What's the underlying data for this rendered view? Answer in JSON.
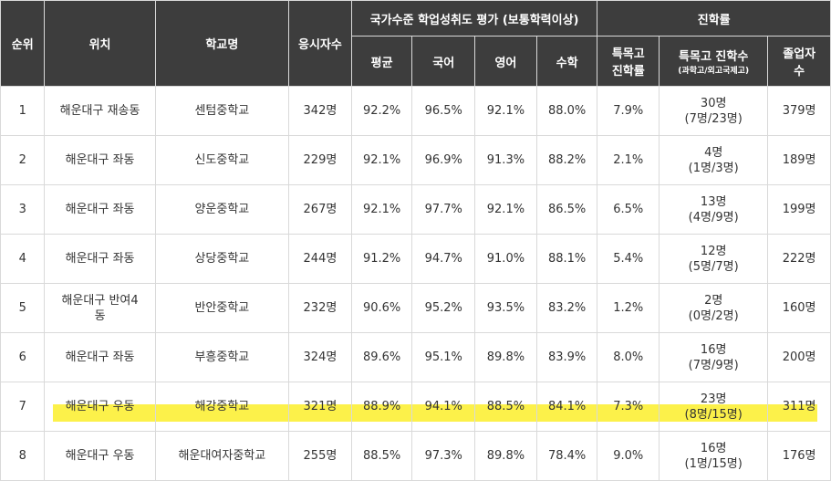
{
  "header": {
    "rank": "순위",
    "location": "위치",
    "school": "학교명",
    "examinees": "응시자수",
    "assessment_group": "국가수준 학업성취도 평가 (보통학력이상)",
    "advancement_group": "진학률",
    "average": "평균",
    "korean": "국어",
    "english": "영어",
    "math": "수학",
    "special_rate_l1": "특목고",
    "special_rate_l2": "진학률",
    "special_count_l1": "특목고 진학수",
    "special_count_l2": "(과학고/외고국제고)",
    "graduates_l1": "졸업자",
    "graduates_l2": "수"
  },
  "rows": [
    {
      "rank": "1",
      "location": "해운대구 재송동",
      "location_l2": "",
      "school": "센텀중학교",
      "examinees": "342명",
      "avg": "92.2%",
      "kor": "96.5%",
      "eng": "92.1%",
      "math": "88.0%",
      "special_rate": "7.9%",
      "special_count": "30명",
      "special_detail": "(7명/23명)",
      "graduates": "379명"
    },
    {
      "rank": "2",
      "location": "해운대구 좌동",
      "location_l2": "",
      "school": "신도중학교",
      "examinees": "229명",
      "avg": "92.1%",
      "kor": "96.9%",
      "eng": "91.3%",
      "math": "88.2%",
      "special_rate": "2.1%",
      "special_count": "4명",
      "special_detail": "(1명/3명)",
      "graduates": "189명"
    },
    {
      "rank": "3",
      "location": "해운대구 좌동",
      "location_l2": "",
      "school": "양운중학교",
      "examinees": "267명",
      "avg": "92.1%",
      "kor": "97.7%",
      "eng": "92.1%",
      "math": "86.5%",
      "special_rate": "6.5%",
      "special_count": "13명",
      "special_detail": "(4명/9명)",
      "graduates": "199명"
    },
    {
      "rank": "4",
      "location": "해운대구 좌동",
      "location_l2": "",
      "school": "상당중학교",
      "examinees": "244명",
      "avg": "91.2%",
      "kor": "94.7%",
      "eng": "91.0%",
      "math": "88.1%",
      "special_rate": "5.4%",
      "special_count": "12명",
      "special_detail": "(5명/7명)",
      "graduates": "222명"
    },
    {
      "rank": "5",
      "location": "해운대구 반여4",
      "location_l2": "동",
      "school": "반안중학교",
      "examinees": "232명",
      "avg": "90.6%",
      "kor": "95.2%",
      "eng": "93.5%",
      "math": "83.2%",
      "special_rate": "1.2%",
      "special_count": "2명",
      "special_detail": "(0명/2명)",
      "graduates": "160명"
    },
    {
      "rank": "6",
      "location": "해운대구 좌동",
      "location_l2": "",
      "school": "부흥중학교",
      "examinees": "324명",
      "avg": "89.6%",
      "kor": "95.1%",
      "eng": "89.8%",
      "math": "83.9%",
      "special_rate": "8.0%",
      "special_count": "16명",
      "special_detail": "(7명/9명)",
      "graduates": "200명"
    },
    {
      "rank": "7",
      "location": "해운대구 우동",
      "location_l2": "",
      "school": "해강중학교",
      "examinees": "321명",
      "avg": "88.9%",
      "kor": "94.1%",
      "eng": "88.5%",
      "math": "84.1%",
      "special_rate": "7.3%",
      "special_count": "23명",
      "special_detail": "(8명/15명)",
      "graduates": "311명"
    },
    {
      "rank": "8",
      "location": "해운대구 우동",
      "location_l2": "",
      "school": "해운대여자중학교",
      "examinees": "255명",
      "avg": "88.5%",
      "kor": "97.3%",
      "eng": "89.8%",
      "math": "78.4%",
      "special_rate": "9.0%",
      "special_count": "16명",
      "special_detail": "(1명/15명)",
      "graduates": "176명"
    }
  ],
  "highlight": {
    "color": "#fbef2a",
    "row_rank": "7"
  }
}
